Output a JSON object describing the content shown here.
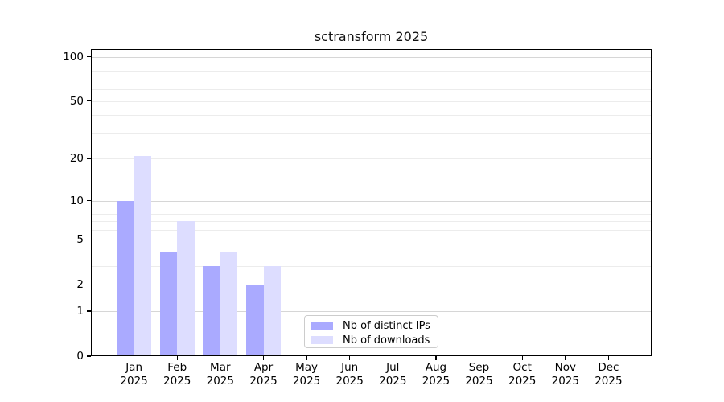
{
  "chart": {
    "title": "sctransform 2025",
    "legend": {
      "items": [
        {
          "label": "Nb of distinct IPs",
          "color": "#aaaaff"
        },
        {
          "label": "Nb of downloads",
          "color": "#ddddff"
        }
      ]
    },
    "x_axis": {
      "months": [
        "Jan",
        "Feb",
        "Mar",
        "Apr",
        "May",
        "Jun",
        "Jul",
        "Aug",
        "Sep",
        "Oct",
        "Nov",
        "Dec"
      ],
      "year": "2025"
    },
    "y_axis": {
      "ticks": [
        0,
        1,
        2,
        5,
        10,
        20,
        50,
        100
      ]
    }
  },
  "chart_data": {
    "type": "bar",
    "title": "sctransform 2025",
    "categories": [
      "Jan 2025",
      "Feb 2025",
      "Mar 2025",
      "Apr 2025",
      "May 2025",
      "Jun 2025",
      "Jul 2025",
      "Aug 2025",
      "Sep 2025",
      "Oct 2025",
      "Nov 2025",
      "Dec 2025"
    ],
    "series": [
      {
        "name": "Nb of distinct IPs",
        "color": "#aaaaff",
        "values": [
          10,
          4,
          3,
          2,
          0,
          0,
          0,
          0,
          0,
          0,
          0,
          0
        ]
      },
      {
        "name": "Nb of downloads",
        "color": "#ddddff",
        "values": [
          21,
          7,
          4,
          3,
          0,
          0,
          0,
          0,
          0,
          0,
          0,
          0
        ]
      }
    ],
    "xlabel": "",
    "ylabel": "",
    "yticks": [
      0,
      1,
      2,
      5,
      10,
      20,
      50,
      100
    ],
    "ylim": [
      0,
      113
    ],
    "scale": "log1p",
    "grid": {
      "minor": [
        2,
        3,
        4,
        5,
        6,
        7,
        8,
        9,
        20,
        30,
        40,
        50,
        60,
        70,
        80,
        90
      ],
      "major": [
        1,
        10,
        100
      ],
      "minor_color": "#ececec",
      "major_color": "#d6d6d6"
    },
    "legend_position": "lower center"
  }
}
